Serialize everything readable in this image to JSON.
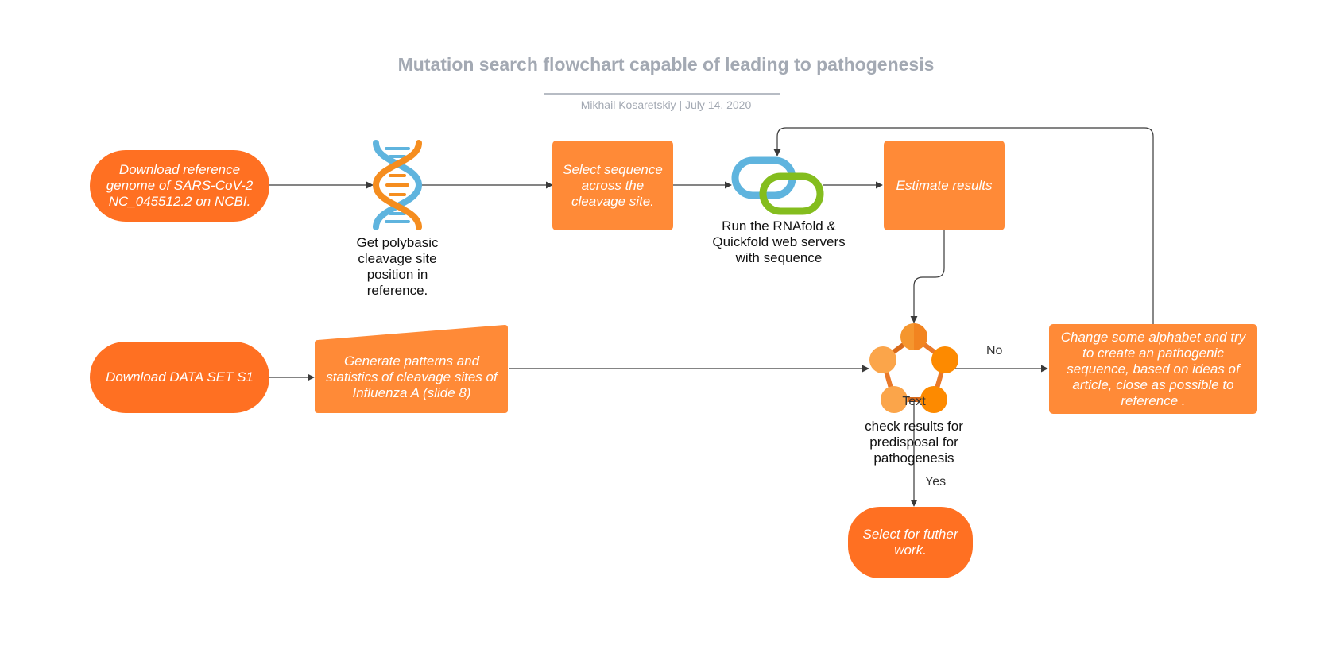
{
  "diagram": {
    "title": "Mutation search flowchart capable of leading to pathogenesis",
    "subtitle": "Mikhail Kosaretskiy  |  July 14, 2020",
    "nodes": {
      "download_reference": "Download reference genome of SARS-CoV-2 NC_045512.2 on NCBI.",
      "get_cleavage_site": "Get polybasic cleavage site position in reference.",
      "select_sequence": "Select sequence across the cleavage site.",
      "run_servers": "Run the RNAfold & Quickfold web servers with sequence",
      "estimate_results": "Estimate results",
      "download_dataset": "Download  DATA SET S1",
      "generate_patterns": "Generate patterns and statistics of cleavage sites of Influenza A (slide 8)",
      "check_results_label": "Text",
      "check_results": "check results for predisposal for pathogenesis",
      "change_alphabet": "Change some alphabet and try to create an pathogenic sequence, based on ideas of article, close as possible to reference .",
      "select_further": "Select for futher work."
    },
    "edge_labels": {
      "no": "No",
      "yes": "Yes"
    },
    "colors": {
      "pill": "#ff7022",
      "box": "#ff8a37",
      "dna_blue": "#5fb4de",
      "dna_orange": "#f58d1f",
      "link_blue": "#5fb4de",
      "link_green": "#84bd1e",
      "title": "#a3a9b3",
      "connector": "#3a3a3a"
    },
    "icons": {
      "dna": "dna-icon",
      "link": "link-icon",
      "network": "network-pentagon-icon"
    }
  }
}
